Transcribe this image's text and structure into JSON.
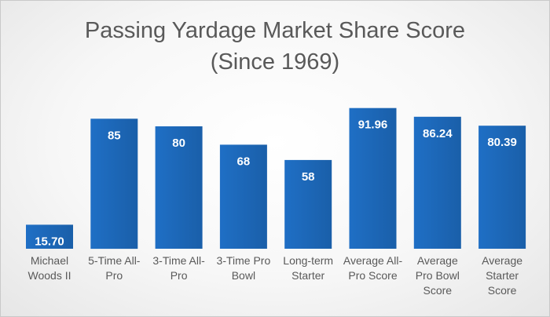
{
  "chart_data": {
    "type": "bar",
    "title": "Passing Yardage Market Share Score",
    "subtitle": "(Since 1969)",
    "categories": [
      "Michael Woods II",
      "5-Time All-Pro",
      "3-Time All-Pro",
      "3-Time Pro Bowl",
      "Long-term Starter",
      "Average All-Pro Score",
      "Average Pro Bowl Score",
      "Average Starter Score"
    ],
    "category_lines": [
      [
        "Michael",
        "Woods II"
      ],
      [
        "5-Time All-",
        "Pro"
      ],
      [
        "3-Time All-",
        "Pro"
      ],
      [
        "3-Time Pro",
        "Bowl"
      ],
      [
        "Long-term",
        "Starter"
      ],
      [
        "Average All-",
        "Pro Score"
      ],
      [
        "Average",
        "Pro Bowl",
        "Score"
      ],
      [
        "Average",
        "Starter",
        "Score"
      ]
    ],
    "values": [
      15.7,
      85,
      80,
      68,
      58,
      91.96,
      86.24,
      80.39
    ],
    "data_labels": [
      "15.70",
      "85",
      "80",
      "68",
      "58",
      "91.96",
      "86.24",
      "80.39"
    ],
    "xlabel": "",
    "ylabel": "",
    "ylim": [
      0,
      100
    ],
    "grid": false,
    "legend": "none",
    "bar_color": "#1f6fc5",
    "bar_color_dark": "#1a5fa9",
    "label_color": "#ffffff",
    "text_color": "#595959"
  }
}
